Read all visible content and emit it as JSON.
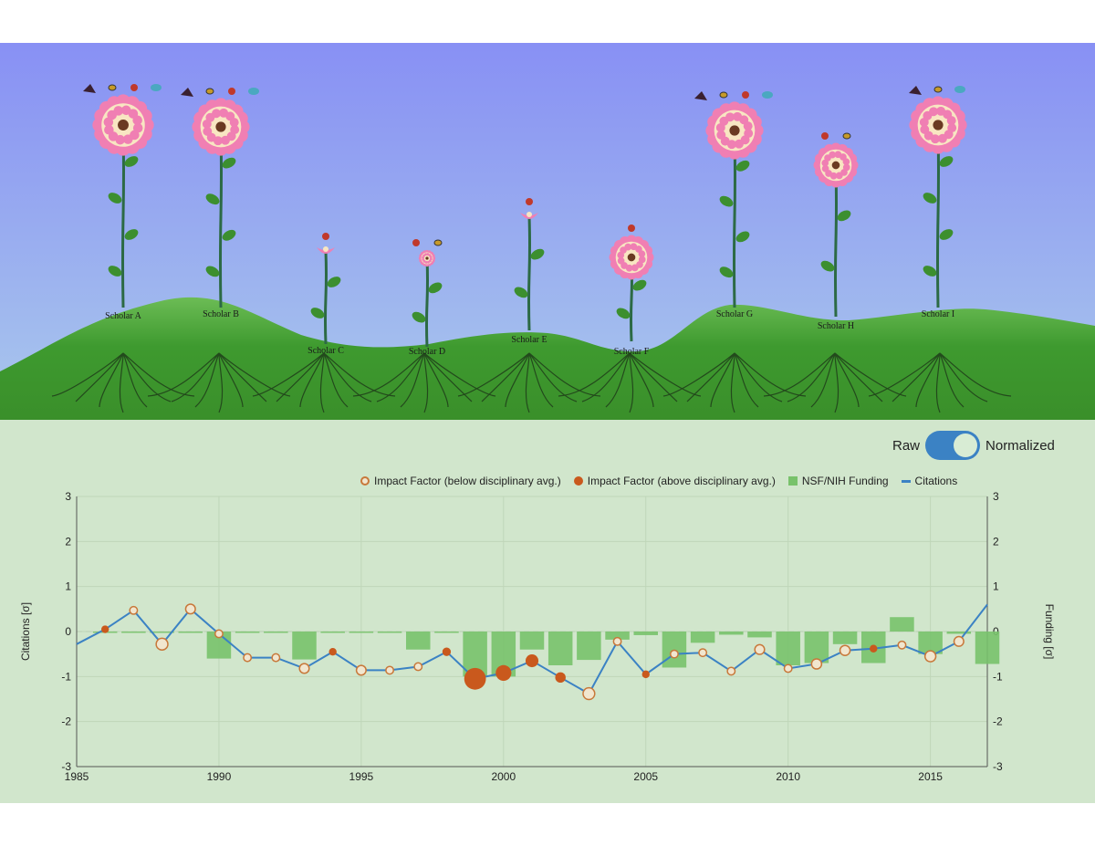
{
  "scene": {
    "scholars": [
      {
        "label": "Scholar A",
        "size": "large",
        "insects": 4
      },
      {
        "label": "Scholar B",
        "size": "large",
        "insects": 4
      },
      {
        "label": "Scholar C",
        "size": "bud",
        "insects": 1
      },
      {
        "label": "Scholar D",
        "size": "small",
        "insects": 2
      },
      {
        "label": "Scholar E",
        "size": "bud",
        "insects": 1
      },
      {
        "label": "Scholar F",
        "size": "medium",
        "insects": 1
      },
      {
        "label": "Scholar G",
        "size": "large",
        "insects": 4
      },
      {
        "label": "Scholar H",
        "size": "medium",
        "insects": 2
      },
      {
        "label": "Scholar I",
        "size": "large",
        "insects": 3
      }
    ]
  },
  "toggle": {
    "left_label": "Raw",
    "right_label": "Normalized",
    "state": "Normalized"
  },
  "legend": {
    "below": "Impact Factor (below disciplinary avg.)",
    "above": "Impact Factor (above disciplinary avg.)",
    "funding": "NSF/NIH Funding",
    "citations": "Citations"
  },
  "colors": {
    "open_marker": "#c8783a",
    "filled_marker": "#c9591d",
    "bar": "#78c26b",
    "line": "#3b82c4"
  },
  "chart_data": {
    "type": "line",
    "xlabel": "",
    "ylabel": "Citations [σ]",
    "y2label": "Funding [σ]",
    "xlim": [
      1985,
      2017
    ],
    "ylim": [
      -3,
      3
    ],
    "y2lim": [
      -3,
      3
    ],
    "x_ticks": [
      "1985",
      "1990",
      "1995",
      "2000",
      "2005",
      "2010",
      "2015"
    ],
    "y_ticks": [
      "3",
      "2",
      "1",
      "0",
      "-1",
      "-2",
      "-3"
    ],
    "grid": true,
    "legend_position": "top",
    "citations": [
      {
        "x": 1985,
        "y": -0.28
      },
      {
        "x": 1986,
        "y": 0.05
      },
      {
        "x": 1987,
        "y": 0.47
      },
      {
        "x": 1988,
        "y": -0.28
      },
      {
        "x": 1989,
        "y": 0.5
      },
      {
        "x": 1990,
        "y": -0.05
      },
      {
        "x": 1991,
        "y": -0.58
      },
      {
        "x": 1992,
        "y": -0.58
      },
      {
        "x": 1993,
        "y": -0.82
      },
      {
        "x": 1994,
        "y": -0.45
      },
      {
        "x": 1995,
        "y": -0.86
      },
      {
        "x": 1996,
        "y": -0.86
      },
      {
        "x": 1997,
        "y": -0.78
      },
      {
        "x": 1998,
        "y": -0.45
      },
      {
        "x": 1999,
        "y": -1.05
      },
      {
        "x": 2000,
        "y": -0.92
      },
      {
        "x": 2001,
        "y": -0.65
      },
      {
        "x": 2002,
        "y": -1.02
      },
      {
        "x": 2003,
        "y": -1.38
      },
      {
        "x": 2004,
        "y": -0.22
      },
      {
        "x": 2005,
        "y": -0.95
      },
      {
        "x": 2006,
        "y": -0.5
      },
      {
        "x": 2007,
        "y": -0.47
      },
      {
        "x": 2008,
        "y": -0.88
      },
      {
        "x": 2009,
        "y": -0.4
      },
      {
        "x": 2010,
        "y": -0.82
      },
      {
        "x": 2011,
        "y": -0.72
      },
      {
        "x": 2012,
        "y": -0.42
      },
      {
        "x": 2013,
        "y": -0.38
      },
      {
        "x": 2014,
        "y": -0.3
      },
      {
        "x": 2015,
        "y": -0.55
      },
      {
        "x": 2016,
        "y": -0.22
      },
      {
        "x": 2017,
        "y": 0.6
      }
    ],
    "impact_factor": [
      {
        "x": 1986,
        "type": "above",
        "size": 1
      },
      {
        "x": 1987,
        "type": "below",
        "size": 1
      },
      {
        "x": 1988,
        "type": "below",
        "size": 2
      },
      {
        "x": 1989,
        "type": "below",
        "size": 1.5
      },
      {
        "x": 1990,
        "type": "below",
        "size": 1
      },
      {
        "x": 1991,
        "type": "below",
        "size": 1
      },
      {
        "x": 1992,
        "type": "below",
        "size": 1
      },
      {
        "x": 1993,
        "type": "below",
        "size": 1.5
      },
      {
        "x": 1994,
        "type": "above",
        "size": 1
      },
      {
        "x": 1995,
        "type": "below",
        "size": 1.5
      },
      {
        "x": 1996,
        "type": "below",
        "size": 1
      },
      {
        "x": 1997,
        "type": "below",
        "size": 1
      },
      {
        "x": 1998,
        "type": "above",
        "size": 1.2
      },
      {
        "x": 1999,
        "type": "above",
        "size": 4.5
      },
      {
        "x": 2000,
        "type": "above",
        "size": 3
      },
      {
        "x": 2001,
        "type": "above",
        "size": 2.3
      },
      {
        "x": 2002,
        "type": "above",
        "size": 1.7
      },
      {
        "x": 2003,
        "type": "below",
        "size": 2
      },
      {
        "x": 2004,
        "type": "below",
        "size": 1
      },
      {
        "x": 2005,
        "type": "above",
        "size": 1
      },
      {
        "x": 2006,
        "type": "below",
        "size": 1
      },
      {
        "x": 2007,
        "type": "below",
        "size": 1
      },
      {
        "x": 2008,
        "type": "below",
        "size": 1
      },
      {
        "x": 2009,
        "type": "below",
        "size": 1.5
      },
      {
        "x": 2010,
        "type": "below",
        "size": 1
      },
      {
        "x": 2011,
        "type": "below",
        "size": 1.6
      },
      {
        "x": 2012,
        "type": "below",
        "size": 1.6
      },
      {
        "x": 2013,
        "type": "above",
        "size": 1
      },
      {
        "x": 2014,
        "type": "below",
        "size": 1
      },
      {
        "x": 2015,
        "type": "below",
        "size": 1.8
      },
      {
        "x": 2016,
        "type": "below",
        "size": 1.5
      }
    ],
    "funding": [
      {
        "x": 1986,
        "y": -0.03
      },
      {
        "x": 1987,
        "y": -0.03
      },
      {
        "x": 1988,
        "y": -0.03
      },
      {
        "x": 1989,
        "y": -0.03
      },
      {
        "x": 1990,
        "y": -0.6
      },
      {
        "x": 1991,
        "y": -0.03
      },
      {
        "x": 1992,
        "y": -0.03
      },
      {
        "x": 1993,
        "y": -0.62
      },
      {
        "x": 1994,
        "y": -0.03
      },
      {
        "x": 1995,
        "y": -0.03
      },
      {
        "x": 1996,
        "y": -0.03
      },
      {
        "x": 1997,
        "y": -0.4
      },
      {
        "x": 1998,
        "y": -0.03
      },
      {
        "x": 1999,
        "y": -1.0
      },
      {
        "x": 2000,
        "y": -1.0
      },
      {
        "x": 2001,
        "y": -0.4
      },
      {
        "x": 2002,
        "y": -0.75
      },
      {
        "x": 2003,
        "y": -0.63
      },
      {
        "x": 2004,
        "y": -0.18
      },
      {
        "x": 2005,
        "y": -0.08
      },
      {
        "x": 2006,
        "y": -0.8
      },
      {
        "x": 2007,
        "y": -0.25
      },
      {
        "x": 2008,
        "y": -0.07
      },
      {
        "x": 2009,
        "y": -0.13
      },
      {
        "x": 2010,
        "y": -0.75
      },
      {
        "x": 2011,
        "y": -0.7
      },
      {
        "x": 2012,
        "y": -0.28
      },
      {
        "x": 2013,
        "y": -0.7
      },
      {
        "x": 2014,
        "y": 0.32
      },
      {
        "x": 2015,
        "y": -0.5
      },
      {
        "x": 2016,
        "y": -0.05
      },
      {
        "x": 2017,
        "y": -0.72
      }
    ]
  }
}
